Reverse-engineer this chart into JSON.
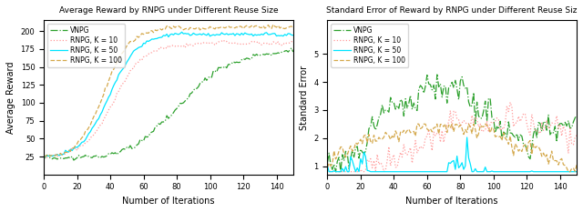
{
  "title1": "Average Reward by RNPG under Different Reuse Size",
  "title2": "Standard Error of Reward by RNPG under Different Reuse Siz",
  "xlabel": "Number of Iterations",
  "ylabel1": "Average Reward",
  "ylabel2": "Standard Error",
  "legend_labels": [
    "VNPG",
    "RNPG, K = 10",
    "RNPG, K = 50",
    "RNPG, K = 100"
  ],
  "colors": [
    "#2ca02c",
    "#ff9999",
    "#00e5ff",
    "#d4a84b"
  ],
  "linestyles": [
    "-.",
    ":",
    "-",
    "--"
  ],
  "n_iter": 150,
  "ylim1": [
    0,
    215
  ],
  "ylim2": [
    0.7,
    6.2
  ],
  "yticks1": [
    25,
    50,
    75,
    100,
    125,
    150,
    175,
    200
  ],
  "yticks2": [
    1,
    2,
    3,
    4,
    5
  ],
  "xticks": [
    0,
    20,
    40,
    60,
    80,
    100,
    120,
    140
  ]
}
